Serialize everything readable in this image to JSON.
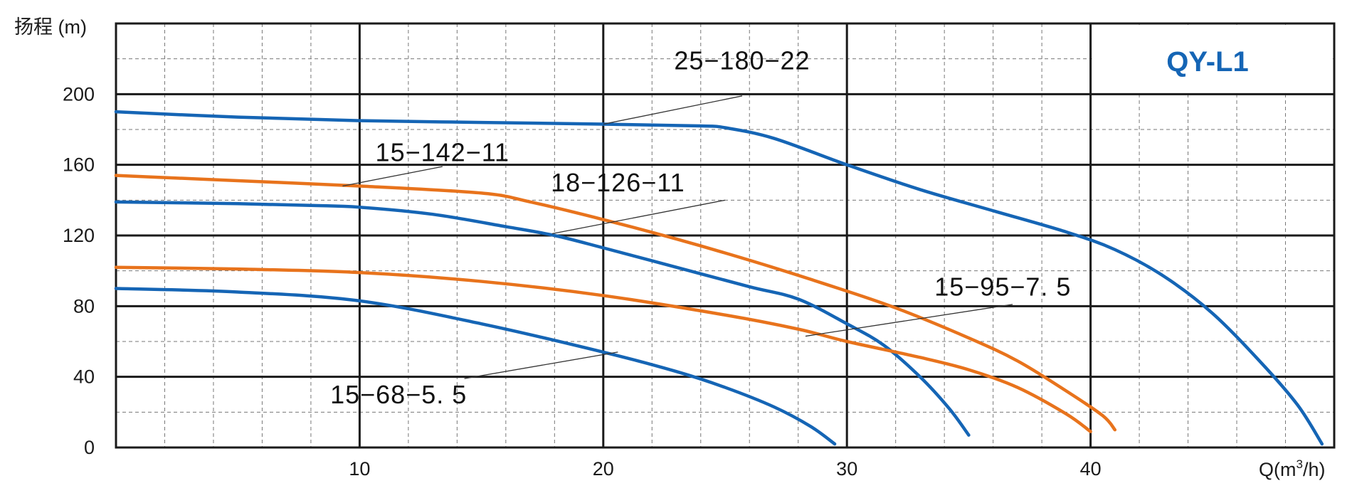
{
  "chart_data": {
    "type": "line",
    "title": "QY-L1",
    "ylabel": "扬程 (m)",
    "xlabel": "Q(m³/h)",
    "xlim": [
      0,
      50
    ],
    "ylim": [
      0,
      240
    ],
    "x_ticks": [
      10,
      20,
      30,
      40
    ],
    "y_ticks": [
      0,
      40,
      80,
      120,
      160,
      200
    ],
    "x_tick_labels": [
      "10",
      "20",
      "30",
      "40"
    ],
    "y_tick_labels": [
      "0",
      "40",
      "80",
      "120",
      "160",
      "200"
    ],
    "grid": true,
    "series": [
      {
        "name": "25−180−22",
        "color": "#1565b5",
        "points": [
          [
            0,
            190
          ],
          [
            5,
            187
          ],
          [
            10,
            185
          ],
          [
            15,
            184
          ],
          [
            20,
            183
          ],
          [
            24,
            182
          ],
          [
            25,
            181
          ],
          [
            27,
            175
          ],
          [
            30,
            160
          ],
          [
            33,
            146
          ],
          [
            36,
            134
          ],
          [
            39,
            122
          ],
          [
            41,
            112
          ],
          [
            43,
            97
          ],
          [
            45,
            76
          ],
          [
            47,
            48
          ],
          [
            48.5,
            24
          ],
          [
            49.5,
            2
          ]
        ]
      },
      {
        "name": "15−142−11",
        "color": "#e8731c",
        "points": [
          [
            0,
            154
          ],
          [
            5,
            151
          ],
          [
            10,
            148
          ],
          [
            15,
            144
          ],
          [
            17,
            139
          ],
          [
            20,
            129
          ],
          [
            23,
            118
          ],
          [
            26,
            106
          ],
          [
            29,
            93
          ],
          [
            32,
            79
          ],
          [
            35,
            62
          ],
          [
            37,
            49
          ],
          [
            39,
            32
          ],
          [
            40.5,
            18
          ],
          [
            41,
            10
          ]
        ]
      },
      {
        "name": "18−126−11",
        "color": "#1565b5",
        "points": [
          [
            0,
            139
          ],
          [
            5,
            138
          ],
          [
            8,
            137
          ],
          [
            10,
            136
          ],
          [
            13,
            132
          ],
          [
            16,
            125
          ],
          [
            18,
            120
          ],
          [
            20,
            113
          ],
          [
            23,
            102
          ],
          [
            26,
            91
          ],
          [
            28,
            84
          ],
          [
            30,
            70
          ],
          [
            31.5,
            58
          ],
          [
            33,
            40
          ],
          [
            34.2,
            22
          ],
          [
            35,
            7
          ]
        ]
      },
      {
        "name": "15−95−7. 5",
        "color": "#e8731c",
        "points": [
          [
            0,
            102
          ],
          [
            5,
            101
          ],
          [
            10,
            99
          ],
          [
            15,
            94
          ],
          [
            20,
            86
          ],
          [
            25,
            75
          ],
          [
            28,
            67
          ],
          [
            30,
            60
          ],
          [
            33,
            51
          ],
          [
            35,
            44
          ],
          [
            37,
            34
          ],
          [
            39,
            19
          ],
          [
            40,
            9
          ]
        ]
      },
      {
        "name": "15−68−5. 5",
        "color": "#1565b5",
        "points": [
          [
            0,
            90
          ],
          [
            5,
            88
          ],
          [
            10,
            83
          ],
          [
            15,
            70
          ],
          [
            20,
            54
          ],
          [
            23,
            43
          ],
          [
            25,
            34
          ],
          [
            27,
            23
          ],
          [
            28.5,
            12
          ],
          [
            29.5,
            2
          ]
        ]
      }
    ],
    "curve_labels": [
      {
        "text": "25−180−22",
        "series": "25−180−22",
        "label_at": [
          25.7,
          214
        ],
        "leader_from": [
          25.7,
          199
        ],
        "leader_to": [
          20,
          183
        ]
      },
      {
        "text": "15−142−11",
        "series": "15−142−11",
        "label_at": [
          13.4,
          162
        ],
        "leader_from": [
          13.4,
          159
        ],
        "leader_to": [
          9.3,
          148
        ]
      },
      {
        "text": "18−126−11",
        "series": "18−126−11",
        "label_at": [
          20.6,
          145
        ],
        "leader_from": [
          25.0,
          140
        ],
        "leader_to": [
          17.9,
          121
        ]
      },
      {
        "text": "15−95−7. 5",
        "series": "15−95−7. 5",
        "label_at": [
          36.4,
          86
        ],
        "leader_from": [
          36.8,
          81
        ],
        "leader_to": [
          28.3,
          63
        ]
      },
      {
        "text": "15−68−5. 5",
        "series": "15−68−5. 5",
        "label_at": [
          11.6,
          25
        ],
        "leader_from": [
          14.3,
          39
        ],
        "leader_to": [
          20.6,
          54
        ]
      }
    ]
  }
}
